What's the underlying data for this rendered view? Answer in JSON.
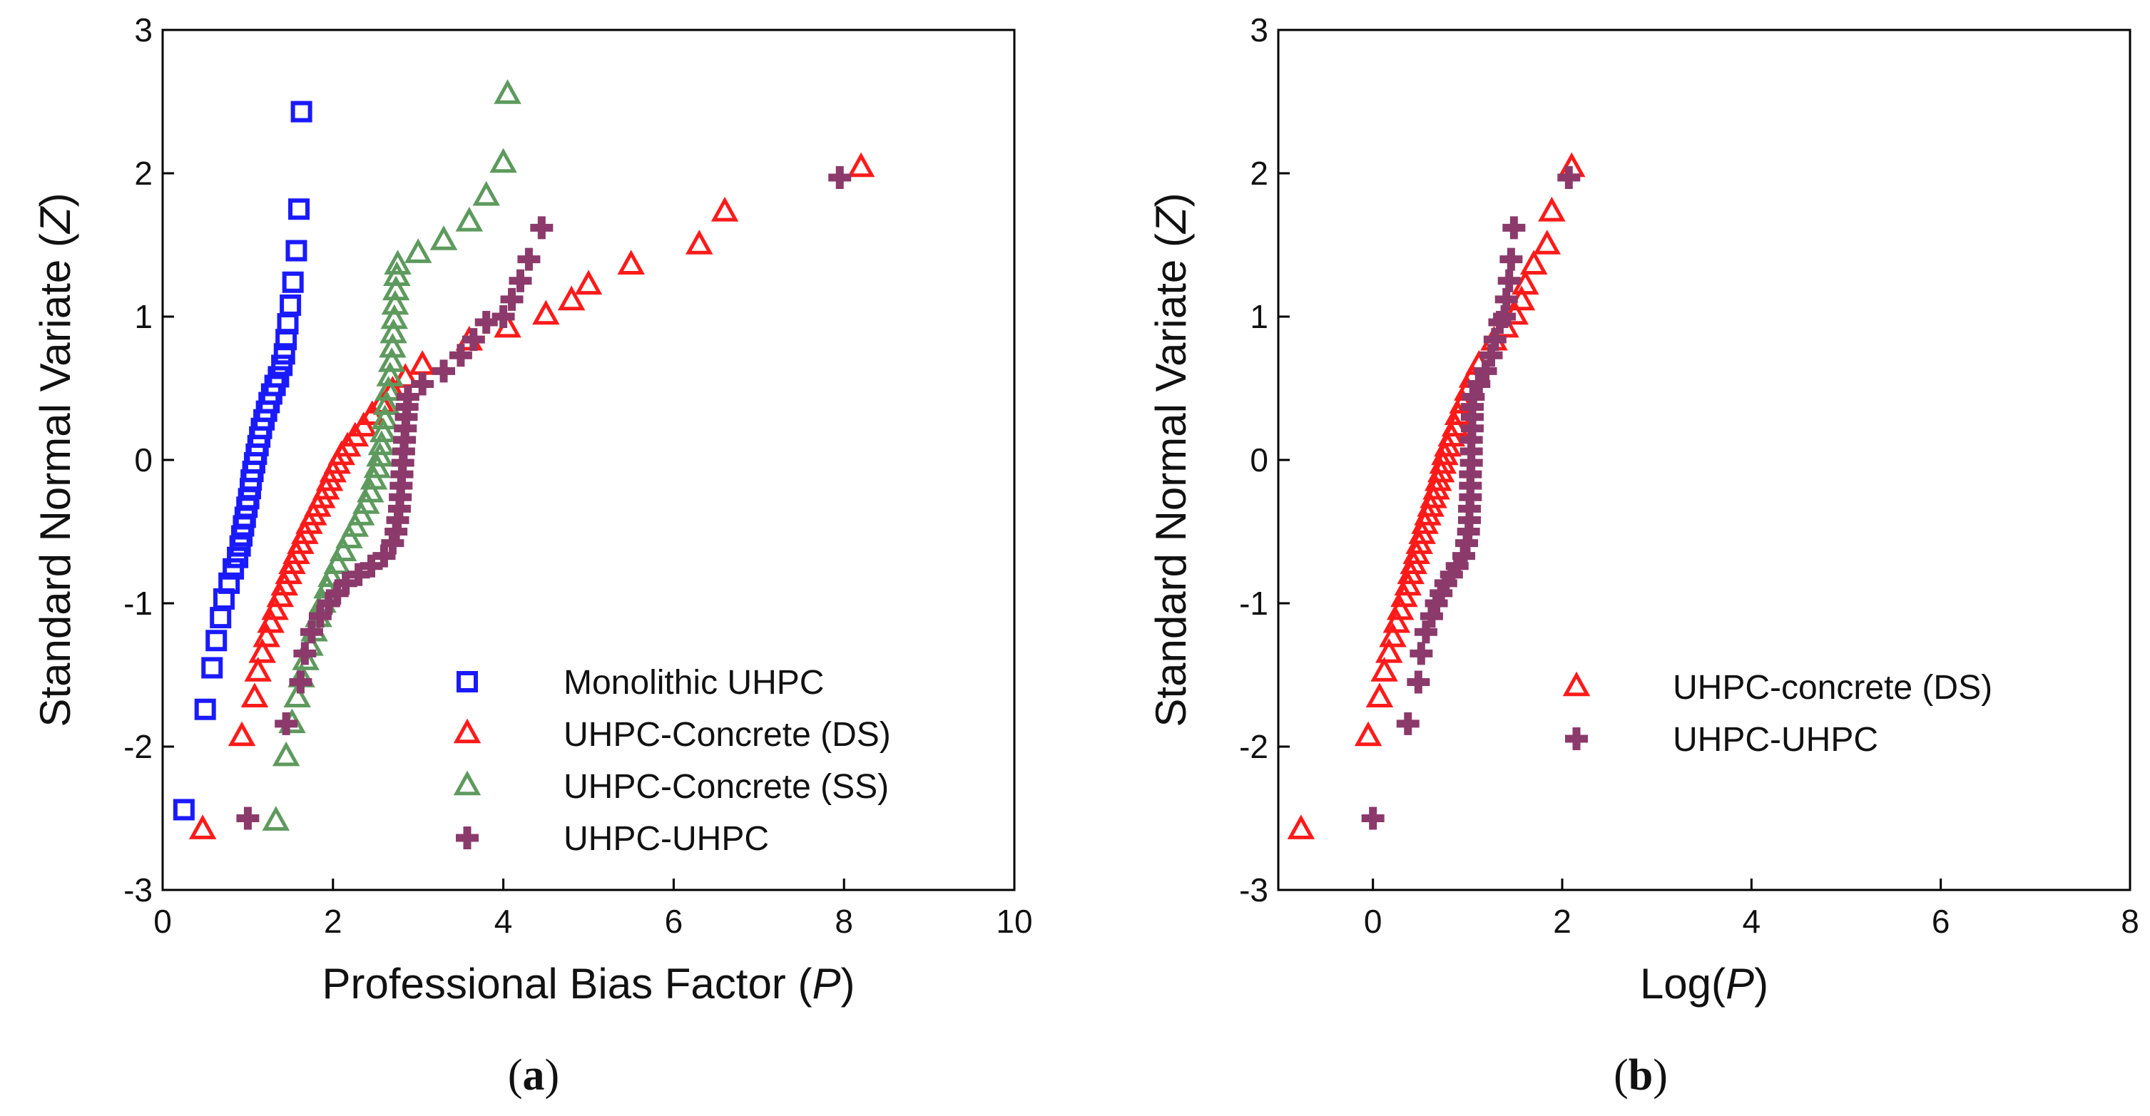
{
  "chart_data": [
    {
      "id": "a",
      "type": "scatter",
      "panel_label": "a",
      "xlabel": "Professional Bias Factor",
      "xlabel_var": "P",
      "ylabel": "Standard Normal Variate",
      "ylabel_var": "Z",
      "xlim": [
        0,
        10
      ],
      "ylim": [
        -3,
        3
      ],
      "xticks": [
        0,
        2,
        4,
        6,
        8,
        10
      ],
      "yticks": [
        -3,
        -2,
        -1,
        0,
        1,
        2,
        3
      ],
      "legend_position": "bottom-right",
      "series": [
        {
          "name": "Monolithic UHPC",
          "marker": "square",
          "color": "#1a1aff",
          "points": [
            [
              0.25,
              -2.44
            ],
            [
              0.5,
              -1.74
            ],
            [
              0.58,
              -1.45
            ],
            [
              0.63,
              -1.26
            ],
            [
              0.68,
              -1.1
            ],
            [
              0.72,
              -0.97
            ],
            [
              0.78,
              -0.86
            ],
            [
              0.83,
              -0.76
            ],
            [
              0.88,
              -0.68
            ],
            [
              0.91,
              -0.6
            ],
            [
              0.93,
              -0.53
            ],
            [
              0.95,
              -0.46
            ],
            [
              0.97,
              -0.4
            ],
            [
              0.99,
              -0.33
            ],
            [
              1.01,
              -0.27
            ],
            [
              1.03,
              -0.2
            ],
            [
              1.04,
              -0.14
            ],
            [
              1.06,
              -0.08
            ],
            [
              1.08,
              -0.02
            ],
            [
              1.1,
              0.04
            ],
            [
              1.12,
              0.1
            ],
            [
              1.14,
              0.16
            ],
            [
              1.16,
              0.22
            ],
            [
              1.19,
              0.28
            ],
            [
              1.22,
              0.34
            ],
            [
              1.25,
              0.4
            ],
            [
              1.28,
              0.46
            ],
            [
              1.32,
              0.52
            ],
            [
              1.36,
              0.58
            ],
            [
              1.4,
              0.66
            ],
            [
              1.43,
              0.74
            ],
            [
              1.45,
              0.84
            ],
            [
              1.47,
              0.95
            ],
            [
              1.5,
              1.08
            ],
            [
              1.53,
              1.24
            ],
            [
              1.57,
              1.46
            ],
            [
              1.6,
              1.75
            ],
            [
              1.63,
              2.43
            ]
          ]
        },
        {
          "name": "UHPC-Concrete (DS)",
          "marker": "triangle",
          "color": "#ff1a1a",
          "points": [
            [
              0.47,
              -2.58
            ],
            [
              0.93,
              -1.93
            ],
            [
              1.08,
              -1.66
            ],
            [
              1.12,
              -1.48
            ],
            [
              1.17,
              -1.35
            ],
            [
              1.22,
              -1.24
            ],
            [
              1.27,
              -1.14
            ],
            [
              1.32,
              -1.05
            ],
            [
              1.38,
              -0.96
            ],
            [
              1.43,
              -0.88
            ],
            [
              1.48,
              -0.8
            ],
            [
              1.52,
              -0.73
            ],
            [
              1.57,
              -0.66
            ],
            [
              1.62,
              -0.59
            ],
            [
              1.67,
              -0.52
            ],
            [
              1.72,
              -0.45
            ],
            [
              1.77,
              -0.39
            ],
            [
              1.82,
              -0.33
            ],
            [
              1.87,
              -0.27
            ],
            [
              1.92,
              -0.21
            ],
            [
              1.96,
              -0.15
            ],
            [
              2.0,
              -0.09
            ],
            [
              2.05,
              -0.03
            ],
            [
              2.1,
              0.03
            ],
            [
              2.17,
              0.09
            ],
            [
              2.26,
              0.16
            ],
            [
              2.36,
              0.23
            ],
            [
              2.46,
              0.31
            ],
            [
              2.57,
              0.39
            ],
            [
              2.7,
              0.48
            ],
            [
              2.85,
              0.57
            ],
            [
              3.05,
              0.66
            ],
            [
              3.6,
              0.83
            ],
            [
              4.05,
              0.92
            ],
            [
              4.5,
              1.01
            ],
            [
              4.8,
              1.11
            ],
            [
              5.0,
              1.22
            ],
            [
              5.5,
              1.36
            ],
            [
              6.3,
              1.5
            ],
            [
              6.6,
              1.73
            ],
            [
              8.2,
              2.04
            ]
          ]
        },
        {
          "name": "UHPC-Concrete (SS)",
          "marker": "triangle",
          "color": "#5e9a5e",
          "points": [
            [
              1.33,
              -2.52
            ],
            [
              1.45,
              -2.07
            ],
            [
              1.52,
              -1.84
            ],
            [
              1.58,
              -1.66
            ],
            [
              1.63,
              -1.52
            ],
            [
              1.68,
              -1.4
            ],
            [
              1.73,
              -1.3
            ],
            [
              1.78,
              -1.2
            ],
            [
              1.83,
              -1.1
            ],
            [
              1.88,
              -1.0
            ],
            [
              1.93,
              -0.9
            ],
            [
              1.98,
              -0.82
            ],
            [
              2.05,
              -0.73
            ],
            [
              2.12,
              -0.64
            ],
            [
              2.19,
              -0.55
            ],
            [
              2.26,
              -0.47
            ],
            [
              2.33,
              -0.39
            ],
            [
              2.39,
              -0.31
            ],
            [
              2.44,
              -0.23
            ],
            [
              2.48,
              -0.14
            ],
            [
              2.52,
              -0.06
            ],
            [
              2.55,
              0.02
            ],
            [
              2.57,
              0.1
            ],
            [
              2.59,
              0.19
            ],
            [
              2.61,
              0.28
            ],
            [
              2.63,
              0.38
            ],
            [
              2.65,
              0.48
            ],
            [
              2.67,
              0.58
            ],
            [
              2.69,
              0.68
            ],
            [
              2.7,
              0.78
            ],
            [
              2.71,
              0.88
            ],
            [
              2.72,
              0.98
            ],
            [
              2.73,
              1.08
            ],
            [
              2.74,
              1.18
            ],
            [
              2.75,
              1.28
            ],
            [
              2.76,
              1.36
            ],
            [
              3.0,
              1.44
            ],
            [
              3.3,
              1.53
            ],
            [
              3.6,
              1.66
            ],
            [
              3.8,
              1.84
            ],
            [
              4.0,
              2.07
            ],
            [
              4.05,
              2.55
            ]
          ]
        },
        {
          "name": "UHPC-UHPC",
          "marker": "cross",
          "color": "#8b3a6b",
          "points": [
            [
              1.0,
              -2.5
            ],
            [
              1.45,
              -1.84
            ],
            [
              1.62,
              -1.55
            ],
            [
              1.67,
              -1.35
            ],
            [
              1.75,
              -1.2
            ],
            [
              1.85,
              -1.09
            ],
            [
              1.95,
              -1.0
            ],
            [
              2.05,
              -0.93
            ],
            [
              2.15,
              -0.86
            ],
            [
              2.3,
              -0.8
            ],
            [
              2.45,
              -0.74
            ],
            [
              2.6,
              -0.67
            ],
            [
              2.7,
              -0.58
            ],
            [
              2.74,
              -0.5
            ],
            [
              2.76,
              -0.42
            ],
            [
              2.78,
              -0.34
            ],
            [
              2.79,
              -0.26
            ],
            [
              2.8,
              -0.18
            ],
            [
              2.81,
              -0.1
            ],
            [
              2.82,
              -0.02
            ],
            [
              2.83,
              0.06
            ],
            [
              2.84,
              0.14
            ],
            [
              2.85,
              0.22
            ],
            [
              2.86,
              0.3
            ],
            [
              2.87,
              0.37
            ],
            [
              2.88,
              0.44
            ],
            [
              3.05,
              0.53
            ],
            [
              3.3,
              0.62
            ],
            [
              3.5,
              0.73
            ],
            [
              3.65,
              0.84
            ],
            [
              3.8,
              0.96
            ],
            [
              4.0,
              1.0
            ],
            [
              4.1,
              1.12
            ],
            [
              4.2,
              1.25
            ],
            [
              4.3,
              1.4
            ],
            [
              4.45,
              1.62
            ],
            [
              7.95,
              1.97
            ]
          ]
        }
      ]
    },
    {
      "id": "b",
      "type": "scatter",
      "panel_label": "b",
      "xlabel": "Log(",
      "xlabel_var": "P",
      "ylabel": "Standard Normal Variate",
      "ylabel_var": "Z",
      "xlim": [
        -1,
        8
      ],
      "ylim": [
        -3,
        3
      ],
      "xticks": [
        0,
        2,
        4,
        6,
        8
      ],
      "yticks": [
        -3,
        -2,
        -1,
        0,
        1,
        2,
        3
      ],
      "legend_position": "bottom-right",
      "series": [
        {
          "name": "UHPC-concrete (DS)",
          "marker": "triangle",
          "color": "#ff1a1a",
          "points": [
            [
              -0.76,
              -2.58
            ],
            [
              -0.05,
              -1.93
            ],
            [
              0.07,
              -1.66
            ],
            [
              0.12,
              -1.48
            ],
            [
              0.17,
              -1.35
            ],
            [
              0.21,
              -1.24
            ],
            [
              0.25,
              -1.14
            ],
            [
              0.29,
              -1.05
            ],
            [
              0.33,
              -0.96
            ],
            [
              0.37,
              -0.88
            ],
            [
              0.4,
              -0.8
            ],
            [
              0.43,
              -0.73
            ],
            [
              0.46,
              -0.66
            ],
            [
              0.49,
              -0.59
            ],
            [
              0.52,
              -0.52
            ],
            [
              0.55,
              -0.45
            ],
            [
              0.58,
              -0.39
            ],
            [
              0.61,
              -0.33
            ],
            [
              0.64,
              -0.27
            ],
            [
              0.67,
              -0.21
            ],
            [
              0.69,
              -0.15
            ],
            [
              0.72,
              -0.09
            ],
            [
              0.74,
              -0.03
            ],
            [
              0.76,
              0.03
            ],
            [
              0.79,
              0.09
            ],
            [
              0.83,
              0.16
            ],
            [
              0.87,
              0.23
            ],
            [
              0.9,
              0.31
            ],
            [
              0.95,
              0.39
            ],
            [
              1.0,
              0.48
            ],
            [
              1.05,
              0.57
            ],
            [
              1.12,
              0.66
            ],
            [
              1.28,
              0.83
            ],
            [
              1.4,
              0.92
            ],
            [
              1.5,
              1.01
            ],
            [
              1.57,
              1.11
            ],
            [
              1.61,
              1.22
            ],
            [
              1.7,
              1.36
            ],
            [
              1.84,
              1.5
            ],
            [
              1.89,
              1.73
            ],
            [
              2.1,
              2.04
            ]
          ]
        },
        {
          "name": "UHPC-UHPC",
          "marker": "cross",
          "color": "#8b3a6b",
          "points": [
            [
              0.0,
              -2.5
            ],
            [
              0.37,
              -1.84
            ],
            [
              0.48,
              -1.55
            ],
            [
              0.51,
              -1.35
            ],
            [
              0.56,
              -1.2
            ],
            [
              0.62,
              -1.09
            ],
            [
              0.67,
              -1.0
            ],
            [
              0.72,
              -0.93
            ],
            [
              0.77,
              -0.86
            ],
            [
              0.83,
              -0.8
            ],
            [
              0.89,
              -0.74
            ],
            [
              0.96,
              -0.67
            ],
            [
              0.99,
              -0.58
            ],
            [
              1.01,
              -0.5
            ],
            [
              1.02,
              -0.42
            ],
            [
              1.02,
              -0.34
            ],
            [
              1.03,
              -0.26
            ],
            [
              1.03,
              -0.18
            ],
            [
              1.03,
              -0.1
            ],
            [
              1.04,
              -0.02
            ],
            [
              1.04,
              0.06
            ],
            [
              1.04,
              0.14
            ],
            [
              1.05,
              0.22
            ],
            [
              1.05,
              0.3
            ],
            [
              1.05,
              0.37
            ],
            [
              1.06,
              0.44
            ],
            [
              1.12,
              0.53
            ],
            [
              1.19,
              0.62
            ],
            [
              1.25,
              0.73
            ],
            [
              1.29,
              0.84
            ],
            [
              1.34,
              0.96
            ],
            [
              1.39,
              1.0
            ],
            [
              1.41,
              1.12
            ],
            [
              1.44,
              1.25
            ],
            [
              1.46,
              1.4
            ],
            [
              1.49,
              1.62
            ],
            [
              2.07,
              1.97
            ]
          ]
        }
      ]
    }
  ]
}
